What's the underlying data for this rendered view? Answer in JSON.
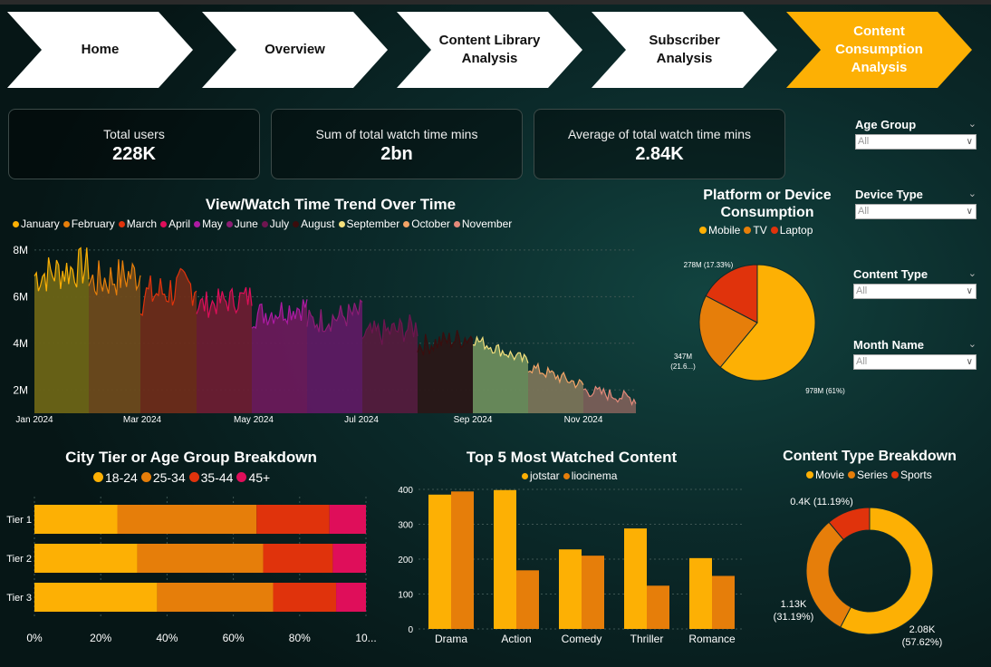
{
  "nav": [
    {
      "label": "Home",
      "active": false
    },
    {
      "label": "Overview",
      "active": false
    },
    {
      "label": "Content Library Analysis",
      "active": false
    },
    {
      "label": "Subscriber Analysis",
      "active": false
    },
    {
      "label": "Content Consumption Analysis",
      "active": true
    }
  ],
  "kpis": [
    {
      "title": "Total users",
      "value": "228K"
    },
    {
      "title": "Sum of total watch time mins",
      "value": "2bn"
    },
    {
      "title": "Average of total watch time mins",
      "value": "2.84K"
    }
  ],
  "slicers": [
    {
      "label": "Age Group",
      "value": "All"
    },
    {
      "label": "Device Type",
      "value": "All"
    },
    {
      "label": "Content Type",
      "value": "All"
    },
    {
      "label": "Month Name",
      "value": "All"
    }
  ],
  "colors": {
    "accent": "#fdb004",
    "orange": "#e67e0a",
    "red": "#e0330c",
    "pink": "#df0e5a"
  },
  "chart_data": [
    {
      "type": "area",
      "title": "View/Watch Time Trend Over Time",
      "legend": [
        "January",
        "February",
        "March",
        "April",
        "May",
        "June",
        "July",
        "August",
        "September",
        "October",
        "November"
      ],
      "legend_colors": [
        "#fdb004",
        "#e67e0a",
        "#e0330c",
        "#df0e5a",
        "#ad1ba3",
        "#8c1d74",
        "#6e1550",
        "#3a0d0d",
        "#f4e07c",
        "#f3a466",
        "#e58a7a"
      ],
      "fill_colors": [
        "#6b6416",
        "#6d4a1c",
        "#6d2c1a",
        "#6b1d33",
        "#6a1a5b",
        "#5e1a63",
        "#541b3d",
        "#2a1717",
        "#6b8c5c",
        "#7a7459",
        "#7a5f58"
      ],
      "x_ticks": [
        "Jan 2024",
        "Mar 2024",
        "May 2024",
        "Jul 2024",
        "Sep 2024",
        "Nov 2024"
      ],
      "y_ticks": [
        "8M",
        "6M",
        "4M",
        "2M"
      ],
      "ylim": [
        1.0,
        8.5
      ],
      "unit": "M",
      "monthly_levels": [
        [
          6.9,
          7.3
        ],
        [
          6.6,
          7.0
        ],
        [
          6.0,
          6.5
        ],
        [
          5.6,
          6.0
        ],
        [
          5.2,
          5.6
        ],
        [
          4.9,
          5.3
        ],
        [
          4.3,
          4.7
        ],
        [
          3.9,
          4.3
        ],
        [
          4.2,
          3.2
        ],
        [
          3.0,
          2.2
        ],
        [
          2.0,
          1.6
        ]
      ]
    },
    {
      "type": "pie",
      "title": "Platform or Device Consumption",
      "labels": [
        "Mobile",
        "TV",
        "Laptop"
      ],
      "values": [
        978,
        347,
        278
      ],
      "colors": [
        "#fdb004",
        "#e67e0a",
        "#e0330c"
      ],
      "data_labels": [
        "978M (61%)",
        "347M (21.6...)",
        "278M (17.33%)"
      ]
    },
    {
      "type": "bar",
      "title": "City Tier or Age Group Breakdown",
      "orientation": "horizontal",
      "stacked": "100%",
      "categories": [
        "Tier 1",
        "Tier 2",
        "Tier 3"
      ],
      "series": [
        {
          "name": "18-24",
          "color": "#fdb004",
          "values": [
            25,
            31,
            37
          ]
        },
        {
          "name": "25-34",
          "color": "#e67e0a",
          "values": [
            42,
            38,
            35
          ]
        },
        {
          "name": "35-44",
          "color": "#e0330c",
          "values": [
            22,
            21,
            19
          ]
        },
        {
          "name": "45+",
          "color": "#df0e5a",
          "values": [
            11,
            10,
            9
          ]
        }
      ],
      "x_ticks": [
        "0%",
        "20%",
        "40%",
        "60%",
        "80%",
        "10..."
      ],
      "xlim": [
        0,
        100
      ]
    },
    {
      "type": "bar",
      "title": "Top 5 Most Watched Content",
      "categories": [
        "Drama",
        "Action",
        "Comedy",
        "Thriller",
        "Romance"
      ],
      "series": [
        {
          "name": "jotstar",
          "color": "#fdb004",
          "values": [
            385,
            398,
            228,
            288,
            203
          ]
        },
        {
          "name": "liocinema",
          "color": "#e67e0a",
          "values": [
            394,
            168,
            210,
            124,
            152
          ]
        }
      ],
      "y_ticks": [
        "400",
        "300",
        "200",
        "100",
        "0"
      ],
      "ylim": [
        0,
        400
      ]
    },
    {
      "type": "pie",
      "title": "Content Type Breakdown",
      "donut": true,
      "labels": [
        "Movie",
        "Series",
        "Sports"
      ],
      "values": [
        2.08,
        1.13,
        0.4
      ],
      "colors": [
        "#fdb004",
        "#e67e0a",
        "#e0330c"
      ],
      "data_labels": [
        "2.08K (57.62%)",
        "1.13K (31.19%)",
        "0.4K (11.19%)"
      ]
    }
  ]
}
